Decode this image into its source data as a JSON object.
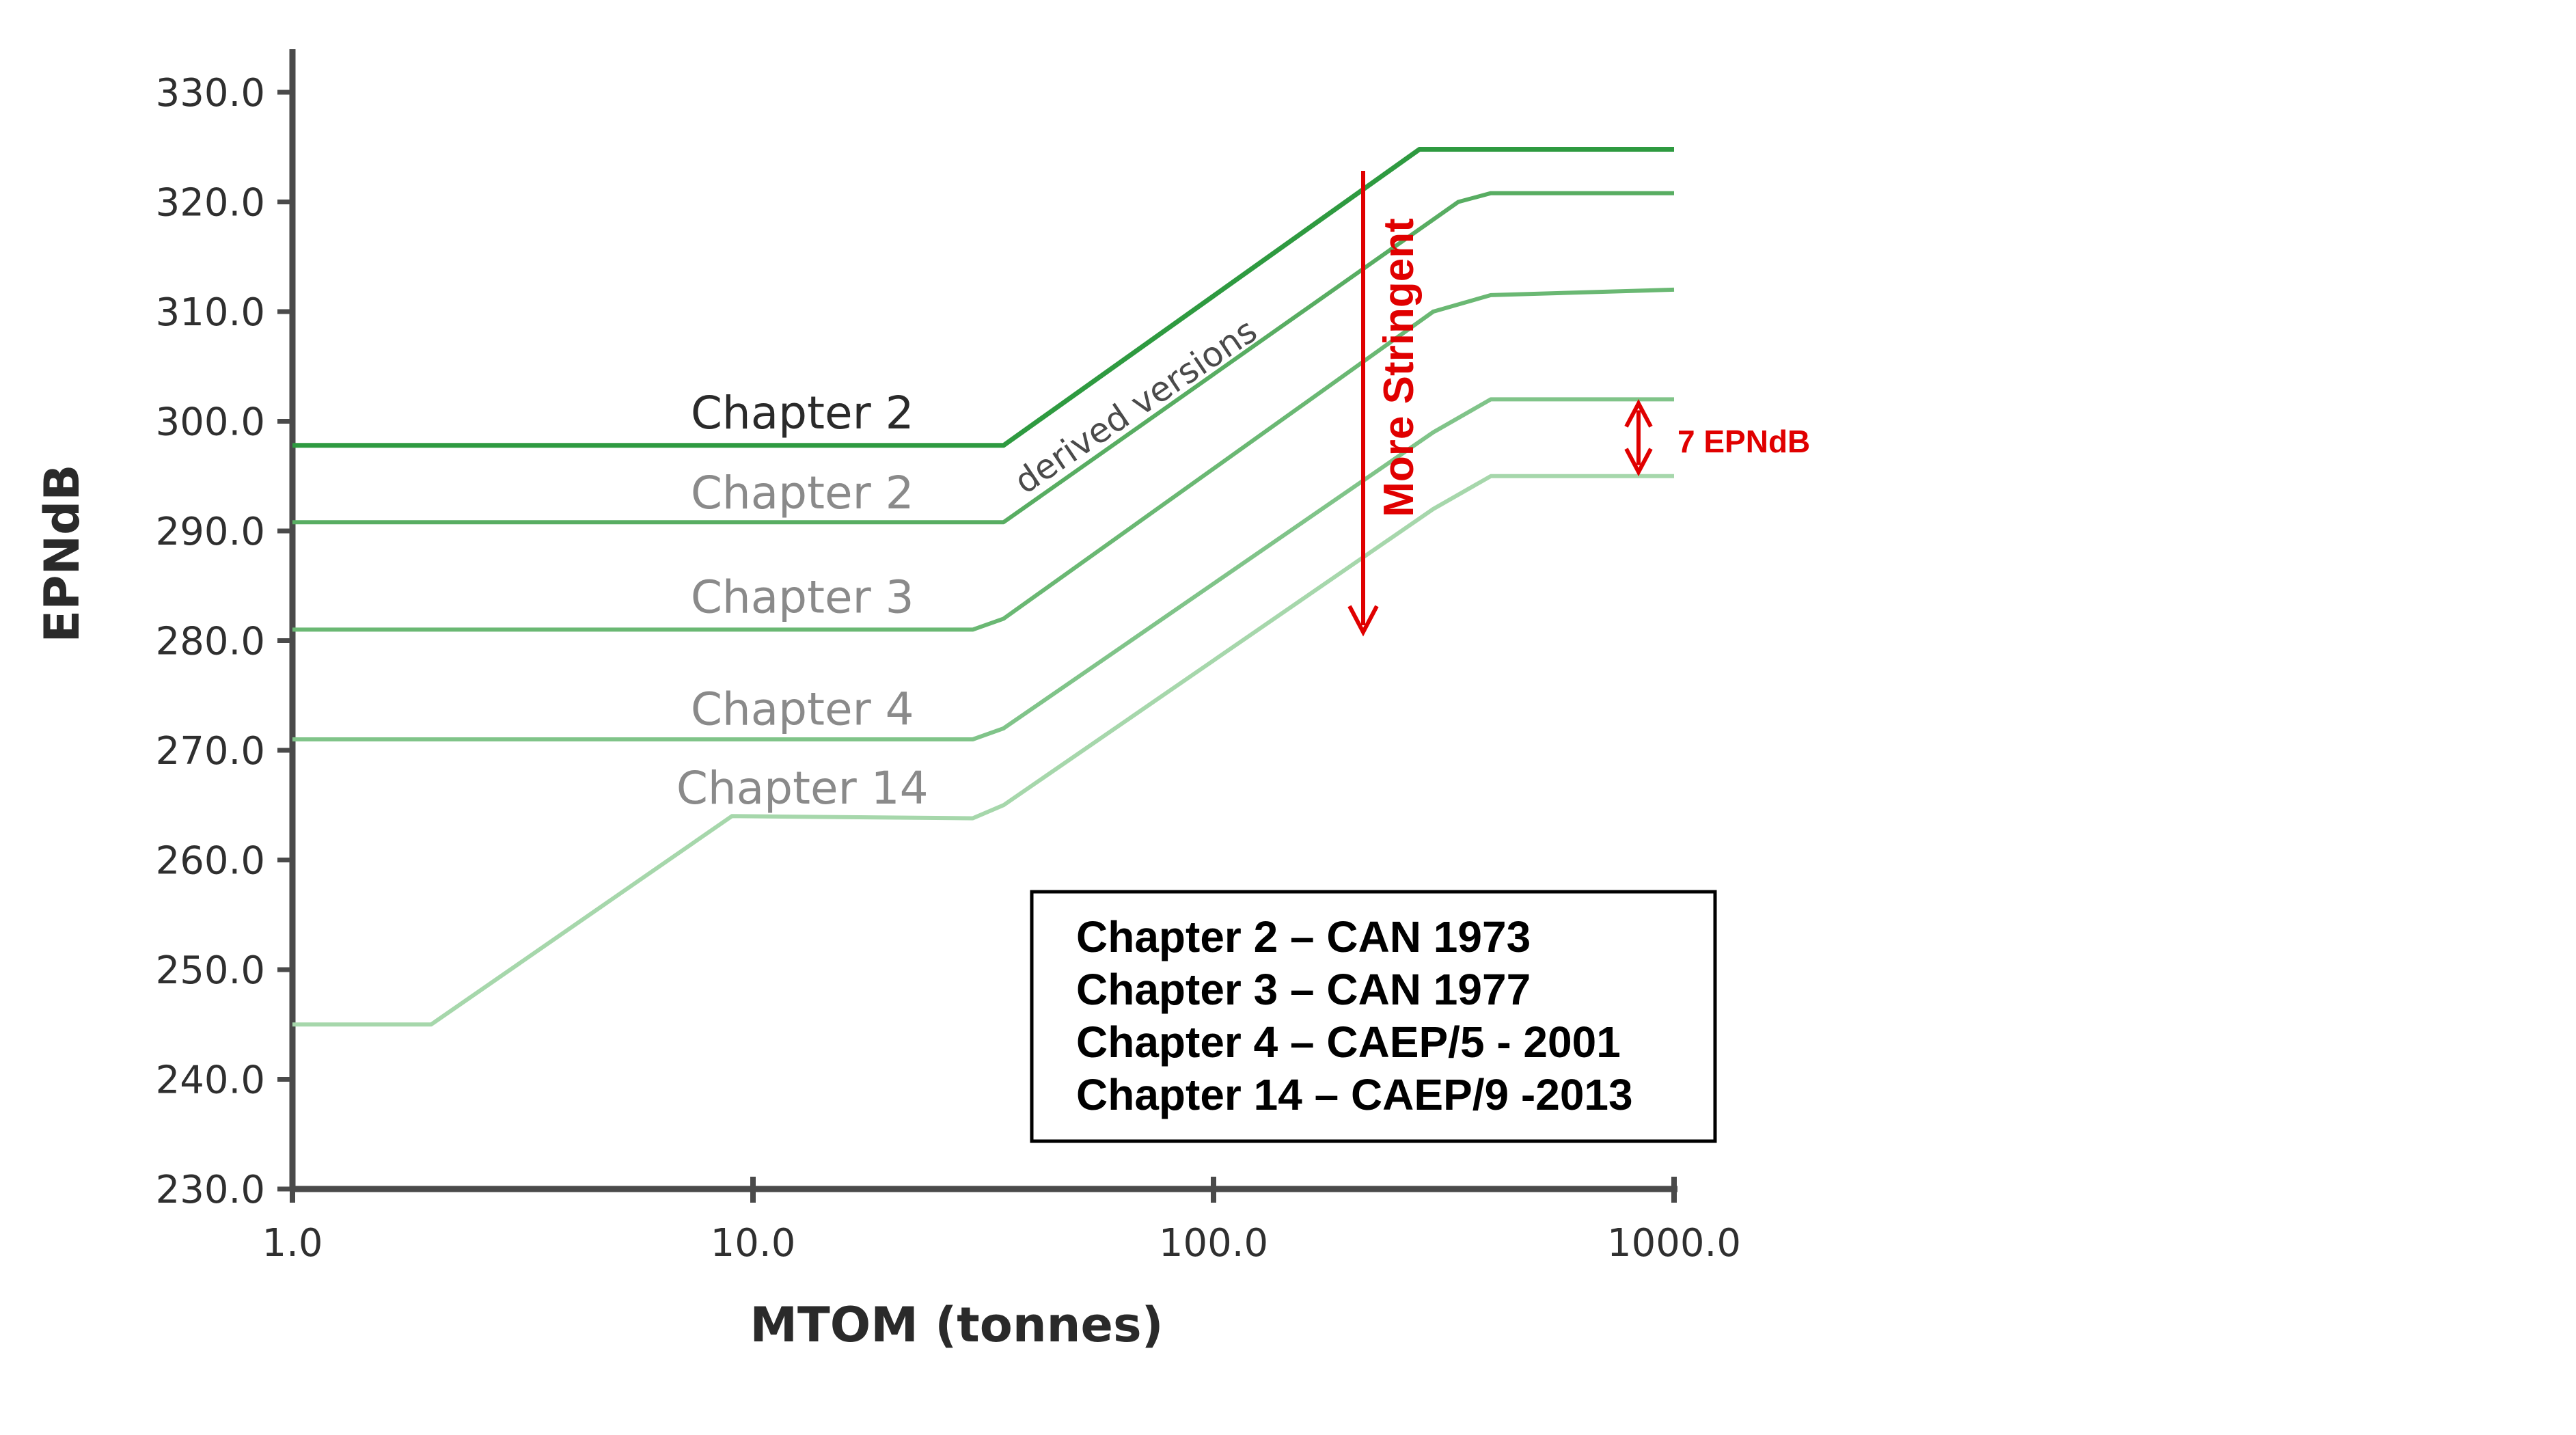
{
  "chart_data": {
    "type": "line",
    "xlabel": "MTOM (tonnes)",
    "ylabel": "EPNdB",
    "xscale": "log",
    "xlim": [
      1.0,
      1000.0
    ],
    "ylim": [
      230.0,
      330.0
    ],
    "x_ticks": [
      "1.0",
      "10.0",
      "100.0",
      "1000.0"
    ],
    "y_ticks": [
      "230.0",
      "240.0",
      "250.0",
      "260.0",
      "270.0",
      "280.0",
      "290.0",
      "300.0",
      "310.0",
      "320.0",
      "330.0"
    ],
    "grid": false,
    "series": [
      {
        "name": "Chapter 2",
        "color": "#2e9a40",
        "x": [
          1.0,
          35.0,
          280.0,
          1000.0
        ],
        "y": [
          297.8,
          297.8,
          324.8,
          324.8
        ]
      },
      {
        "name": "Chapter 2",
        "color": "#58ad62",
        "x": [
          1.0,
          35.0,
          340.0,
          400.0,
          1000.0
        ],
        "y": [
          290.8,
          290.8,
          320.0,
          320.8,
          320.8
        ]
      },
      {
        "name": "Chapter 3",
        "color": "#6ab873",
        "x": [
          1.0,
          30.0,
          35.0,
          300.0,
          400.0,
          1000.0
        ],
        "y": [
          281.0,
          281.0,
          282.0,
          310.0,
          311.5,
          312.0
        ]
      },
      {
        "name": "Chapter 4",
        "color": "#80c489",
        "x": [
          1.0,
          30.0,
          35.0,
          300.0,
          400.0,
          1000.0
        ],
        "y": [
          271.0,
          271.0,
          272.0,
          299.0,
          302.0,
          302.0
        ]
      },
      {
        "name": "Chapter 14",
        "color": "#a6d7ab",
        "x": [
          1.0,
          2.0,
          9.0,
          30.0,
          35.0,
          300.0,
          400.0,
          1000.0
        ],
        "y": [
          245.0,
          245.0,
          264.0,
          263.8,
          265.0,
          292.0,
          295.0,
          295.0
        ]
      }
    ],
    "annotations": {
      "derived_versions": "derived versions",
      "more_stringent": "More Stringent",
      "gap_label": "7 EPNdB"
    },
    "legend_box": [
      "Chapter 2 – CAN 1973",
      "Chapter 3 – CAN 1977",
      "Chapter 4 – CAEP/5 - 2001",
      "Chapter 14 – CAEP/9 -2013"
    ]
  },
  "colors": {
    "axis": "#4a4a4a",
    "annotation": "#e00000",
    "chapter2_label": "#2a2a2a",
    "faded_label": "#8a8a8a"
  }
}
